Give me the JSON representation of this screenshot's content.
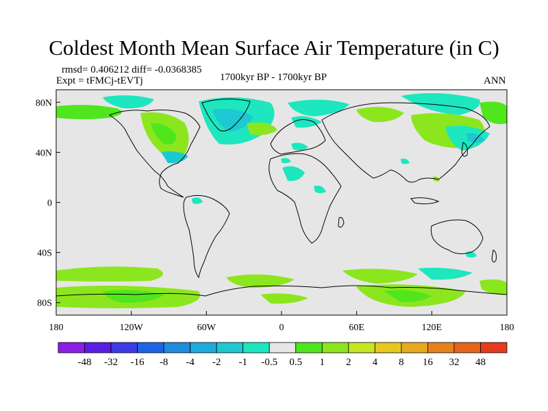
{
  "title": "Coldest Month Mean Surface Air Temperature (in C)",
  "stats_line": "rmsd= 0.406212 diff= -0.0368385",
  "expt_line": "Expt = tFMCj-tEVTj",
  "period": "1700kyr BP - 1700kyr BP",
  "season": "ANN",
  "lat_labels": [
    "80N",
    "40N",
    "0",
    "40S",
    "80S"
  ],
  "lon_labels": [
    "180",
    "120W",
    "60W",
    "0",
    "60E",
    "120E",
    "180"
  ],
  "colorbar": {
    "labels": [
      "-48",
      "-32",
      "-16",
      "-8",
      "-4",
      "-2",
      "-1",
      "-0.5",
      "0.5",
      "1",
      "2",
      "4",
      "8",
      "16",
      "32",
      "48"
    ],
    "colors": [
      "#8c1ee6",
      "#5a1ee6",
      "#3c3ce6",
      "#1e64e6",
      "#1e8cdc",
      "#1eaadc",
      "#1ec8d2",
      "#1ee6be",
      "#e6e6e6",
      "#50e61e",
      "#8ce61e",
      "#c8e61e",
      "#e6c81e",
      "#e6aa1e",
      "#e6821e",
      "#e6641e",
      "#e63c1e"
    ]
  },
  "colors": {
    "background": "#e6e6e6",
    "cool": "#1ee6be",
    "cool_strong": "#1ec8d2",
    "warm": "#8ce61e",
    "warm_strong": "#50e61e",
    "coast": "#000000"
  }
}
